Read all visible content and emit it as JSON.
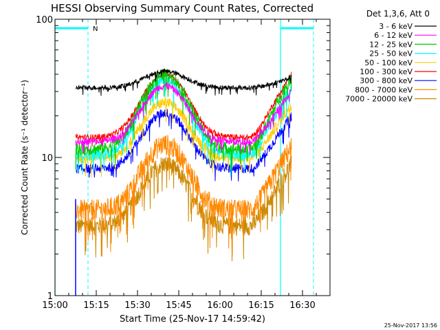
{
  "chart_data": {
    "type": "line",
    "title": "HESSI Observing Summary Count Rates, Corrected",
    "xlabel": "Start Time (25-Nov-17 14:59:42)",
    "ylabel": "Corrected Count Rate (s⁻¹ detector⁻¹)",
    "yscale": "log",
    "ylim": [
      1,
      100
    ],
    "xlim_minutes": [
      0,
      100
    ],
    "x_ticks": [
      {
        "label": "15:00",
        "min": 0
      },
      {
        "label": "15:15",
        "min": 15
      },
      {
        "label": "15:30",
        "min": 30
      },
      {
        "label": "15:45",
        "min": 45
      },
      {
        "label": "16:00",
        "min": 60
      },
      {
        "label": "16:15",
        "min": 75
      },
      {
        "label": "16:30",
        "min": 90
      }
    ],
    "y_ticks": [
      {
        "label": "1",
        "value": 1
      },
      {
        "label": "10",
        "value": 10
      },
      {
        "label": "100",
        "value": 100
      }
    ],
    "legend_title": "Det 1,3,6, Att 0",
    "legend_placement": "right",
    "grid": false,
    "footer_date": "25-Nov-2017 13:56",
    "night_label": "N",
    "annotations": {
      "night_intervals_min": [
        [
          0,
          12
        ],
        [
          82,
          94
        ]
      ],
      "dashed_lines_min": [
        12,
        94
      ],
      "solid_lines_min": [
        0,
        82
      ]
    },
    "series": [
      {
        "name": "3 - 6 keV",
        "color": "#000000",
        "flat": 32,
        "peak": 42,
        "end": 38,
        "noise": 0.04
      },
      {
        "name": "6 - 12 keV",
        "color": "#ff00ff",
        "flat": 13,
        "peak": 33,
        "end": 30,
        "noise": 0.06
      },
      {
        "name": "12 - 25 keV",
        "color": "#00cc00",
        "flat": 11.5,
        "peak": 40,
        "end": 38,
        "noise": 0.1
      },
      {
        "name": "25 - 50 keV",
        "color": "#00ffff",
        "flat": 10.5,
        "peak": 36,
        "end": 32,
        "noise": 0.1
      },
      {
        "name": "50 - 100 keV",
        "color": "#ffcc00",
        "flat": 10,
        "peak": 25,
        "end": 24,
        "noise": 0.09
      },
      {
        "name": "100 - 300 keV",
        "color": "#ff0000",
        "flat": 14,
        "peak": 40,
        "end": 40,
        "noise": 0.05
      },
      {
        "name": "300 - 800 keV",
        "color": "#0000ff",
        "flat": 8.3,
        "peak": 21,
        "end": 20,
        "noise": 0.08
      },
      {
        "name": "800 - 7000 keV",
        "color": "#ff8800",
        "flat": 4.2,
        "peak": 12.5,
        "end": 12,
        "noise": 0.18
      },
      {
        "name": "7000 - 20000 keV",
        "color": "#cc8800",
        "flat": 3.2,
        "peak": 9,
        "end": 9,
        "noise": 0.15
      }
    ],
    "data_start_min": 7.5,
    "data_end_min": 86,
    "peak_center_min": 40,
    "peak_width_min": 10,
    "rise_start_min": 71
  }
}
